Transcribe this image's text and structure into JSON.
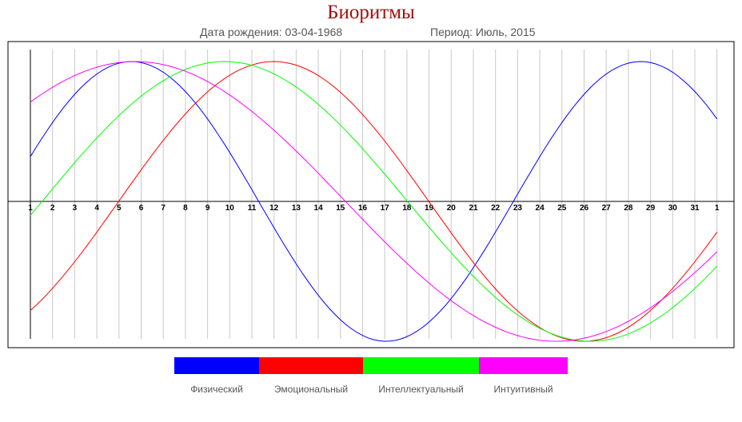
{
  "header": {
    "title": "Биоритмы",
    "birth_label": "Дата рождения:",
    "birth_date": "03-04-1968",
    "period_label": "Период:",
    "period_value": "Июль, 2015"
  },
  "chart_data": {
    "type": "line",
    "title": "Биоритмы",
    "x": [
      "1",
      "2",
      "3",
      "4",
      "5",
      "6",
      "7",
      "8",
      "9",
      "10",
      "11",
      "12",
      "13",
      "14",
      "15",
      "16",
      "17",
      "18",
      "19",
      "20",
      "21",
      "22",
      "23",
      "24",
      "25",
      "26",
      "27",
      "28",
      "29",
      "30",
      "31",
      "1"
    ],
    "ylim": [
      -1,
      1
    ],
    "grid": true,
    "legend_placement": "bottom",
    "series": [
      {
        "name": "Физический",
        "color": "#0000ff",
        "period": 23,
        "values": [
          0.32,
          0.57,
          0.77,
          0.91,
          1.0,
          0.98,
          0.89,
          0.73,
          0.52,
          0.27,
          0.0,
          -0.27,
          -0.52,
          -0.73,
          -0.89,
          -0.98,
          -1.0,
          -0.91,
          -0.77,
          -0.57,
          -0.32,
          -0.07,
          0.2,
          0.46,
          0.68,
          0.85,
          0.96,
          1.0,
          0.94,
          0.82,
          0.63,
          0.4
        ]
      },
      {
        "name": "Эмоциональный",
        "color": "#ff0000",
        "period": 28,
        "values": [
          -0.78,
          -0.62,
          -0.43,
          -0.22,
          0.0,
          0.22,
          0.43,
          0.62,
          0.78,
          0.9,
          0.97,
          1.0,
          0.97,
          0.9,
          0.78,
          0.62,
          0.43,
          0.22,
          0.0,
          -0.22,
          -0.43,
          -0.62,
          -0.78,
          -0.9,
          -0.97,
          -1.0,
          -0.97,
          -0.9,
          -0.78,
          -0.62,
          -0.43,
          -0.22
        ]
      },
      {
        "name": "Интеллектуальный",
        "color": "#00ff00",
        "period": 33,
        "values": [
          -0.1,
          0.09,
          0.28,
          0.46,
          0.62,
          0.76,
          0.87,
          0.95,
          0.99,
          1.0,
          0.97,
          0.91,
          0.81,
          0.69,
          0.54,
          0.37,
          0.19,
          0.0,
          -0.19,
          -0.37,
          -0.54,
          -0.69,
          -0.81,
          -0.91,
          -0.97,
          -1.0,
          -0.99,
          -0.95,
          -0.87,
          -0.76,
          -0.62,
          -0.46
        ]
      },
      {
        "name": "Интуитивный",
        "color": "#ff00ff",
        "period": 38,
        "values": [
          0.71,
          0.81,
          0.89,
          0.95,
          0.99,
          1.0,
          0.99,
          0.95,
          0.89,
          0.81,
          0.71,
          0.59,
          0.46,
          0.32,
          0.16,
          0.0,
          -0.16,
          -0.32,
          -0.46,
          -0.59,
          -0.71,
          -0.81,
          -0.89,
          -0.95,
          -0.99,
          -1.0,
          -0.99,
          -0.95,
          -0.89,
          -0.81,
          -0.71,
          -0.59
        ]
      }
    ]
  }
}
